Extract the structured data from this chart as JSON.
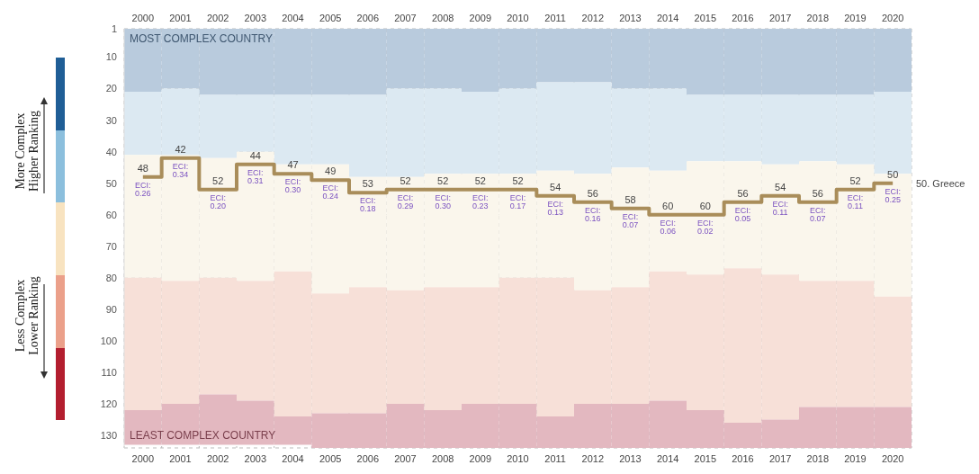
{
  "chart_data": {
    "type": "bar",
    "categories": [
      "2000",
      "2001",
      "2002",
      "2003",
      "2004",
      "2005",
      "2006",
      "2007",
      "2008",
      "2009",
      "2010",
      "2011",
      "2012",
      "2013",
      "2014",
      "2015",
      "2016",
      "2017",
      "2018",
      "2019",
      "2020"
    ],
    "series": [
      {
        "color": "#b9cbdd",
        "base": [
          1,
          1,
          1,
          1,
          1,
          1,
          1,
          1,
          1,
          1,
          1,
          1,
          1,
          1,
          1,
          1,
          1,
          1,
          1,
          1,
          1
        ],
        "values": [
          20,
          19,
          21,
          21,
          21,
          21,
          21,
          19,
          19,
          20,
          19,
          17,
          17,
          19,
          19,
          21,
          21,
          21,
          21,
          21,
          20
        ]
      },
      {
        "color": "#dce9f2",
        "base": [
          21,
          20,
          22,
          22,
          22,
          22,
          22,
          20,
          20,
          21,
          20,
          18,
          18,
          20,
          20,
          22,
          22,
          22,
          22,
          22,
          21
        ],
        "values": [
          20,
          21,
          20,
          18,
          22,
          22,
          26,
          28,
          27,
          26,
          27,
          28,
          29,
          25,
          26,
          21,
          21,
          22,
          21,
          22,
          26
        ]
      },
      {
        "color": "#faf6ec",
        "base": [
          41,
          41,
          42,
          40,
          44,
          44,
          48,
          48,
          47,
          47,
          47,
          46,
          47,
          45,
          46,
          43,
          43,
          44,
          43,
          44,
          47
        ],
        "values": [
          39,
          40,
          38,
          41,
          34,
          41,
          35,
          36,
          36,
          36,
          33,
          34,
          37,
          38,
          32,
          36,
          34,
          35,
          38,
          37,
          39
        ]
      },
      {
        "color": "#f7e0d8",
        "base": [
          80,
          81,
          80,
          81,
          78,
          85,
          83,
          84,
          83,
          83,
          80,
          80,
          84,
          83,
          78,
          79,
          77,
          79,
          81,
          81,
          86
        ],
        "values": [
          42,
          39,
          37,
          38,
          46,
          38,
          40,
          36,
          39,
          37,
          40,
          44,
          36,
          37,
          41,
          43,
          49,
          46,
          40,
          40,
          35
        ]
      },
      {
        "color": "#e3b8c0",
        "base": [
          122,
          120,
          117,
          119,
          124,
          123,
          123,
          120,
          122,
          120,
          120,
          124,
          120,
          120,
          119,
          122,
          126,
          125,
          121,
          121,
          121
        ],
        "values": [
          11,
          13,
          16,
          14,
          9,
          11,
          11,
          14,
          12,
          14,
          14,
          10,
          14,
          14,
          15,
          12,
          8,
          9,
          13,
          13,
          13
        ]
      },
      {
        "type": "step",
        "color": "#a98d5a",
        "values": [
          48,
          42,
          52,
          44,
          47,
          49,
          53,
          52,
          52,
          52,
          52,
          54,
          56,
          58,
          60,
          60,
          56,
          54,
          56,
          52,
          50
        ],
        "value_labels": [
          "48",
          "42",
          "52",
          "44",
          "47",
          "49",
          "53",
          "52",
          "52",
          "52",
          "52",
          "54",
          "56",
          "58",
          "60",
          "60",
          "56",
          "54",
          "56",
          "52",
          "50"
        ]
      }
    ],
    "ylim": [
      134,
      1
    ],
    "yticks": [
      1,
      10,
      20,
      30,
      40,
      50,
      60,
      70,
      80,
      90,
      100,
      110,
      120,
      130
    ],
    "grid": true,
    "marker": "none",
    "annotations": [
      "MOST COMPLEX COUNTRY",
      "LEAST COMPLEX COUNTRY",
      "More Complex",
      "Higher Ranking",
      "Less Complex",
      "Lower Ranking",
      {
        "text": "ECI: 0.26",
        "x": "2000",
        "y": 48
      },
      {
        "text": "ECI: 0.34",
        "x": "2001",
        "y": 42
      },
      {
        "text": "ECI: 0.20",
        "x": "2002",
        "y": 52
      },
      {
        "text": "ECI: 0.31",
        "x": "2003",
        "y": 44
      },
      {
        "text": "ECI: 0.30",
        "x": "2004",
        "y": 47
      },
      {
        "text": "ECI: 0.24",
        "x": "2005",
        "y": 49
      },
      {
        "text": "ECI: 0.18",
        "x": "2006",
        "y": 53
      },
      {
        "text": "ECI: 0.29",
        "x": "2007",
        "y": 52
      },
      {
        "text": "ECI: 0.30",
        "x": "2008",
        "y": 52
      },
      {
        "text": "ECI: 0.23",
        "x": "2009",
        "y": 52
      },
      {
        "text": "ECI: 0.17",
        "x": "2010",
        "y": 52
      },
      {
        "text": "ECI: 0.13",
        "x": "2011",
        "y": 54
      },
      {
        "text": "ECI: 0.16",
        "x": "2012",
        "y": 56
      },
      {
        "text": "ECI: 0.07",
        "x": "2013",
        "y": 58
      },
      {
        "text": "ECI: 0.06",
        "x": "2014",
        "y": 60
      },
      {
        "text": "ECI: 0.02",
        "x": "2015",
        "y": 60
      },
      {
        "text": "ECI: 0.05",
        "x": "2016",
        "y": 56
      },
      {
        "text": "ECI: 0.11",
        "x": "2017",
        "y": 54
      },
      {
        "text": "ECI: 0.07",
        "x": "2018",
        "y": 56
      },
      {
        "text": "ECI: 0.11",
        "x": "2019",
        "y": 52
      },
      {
        "text": "ECI: 0.25",
        "x": "2020",
        "y": 50
      },
      {
        "text": "50. Greece",
        "x": "2020",
        "y": 50
      }
    ]
  }
}
